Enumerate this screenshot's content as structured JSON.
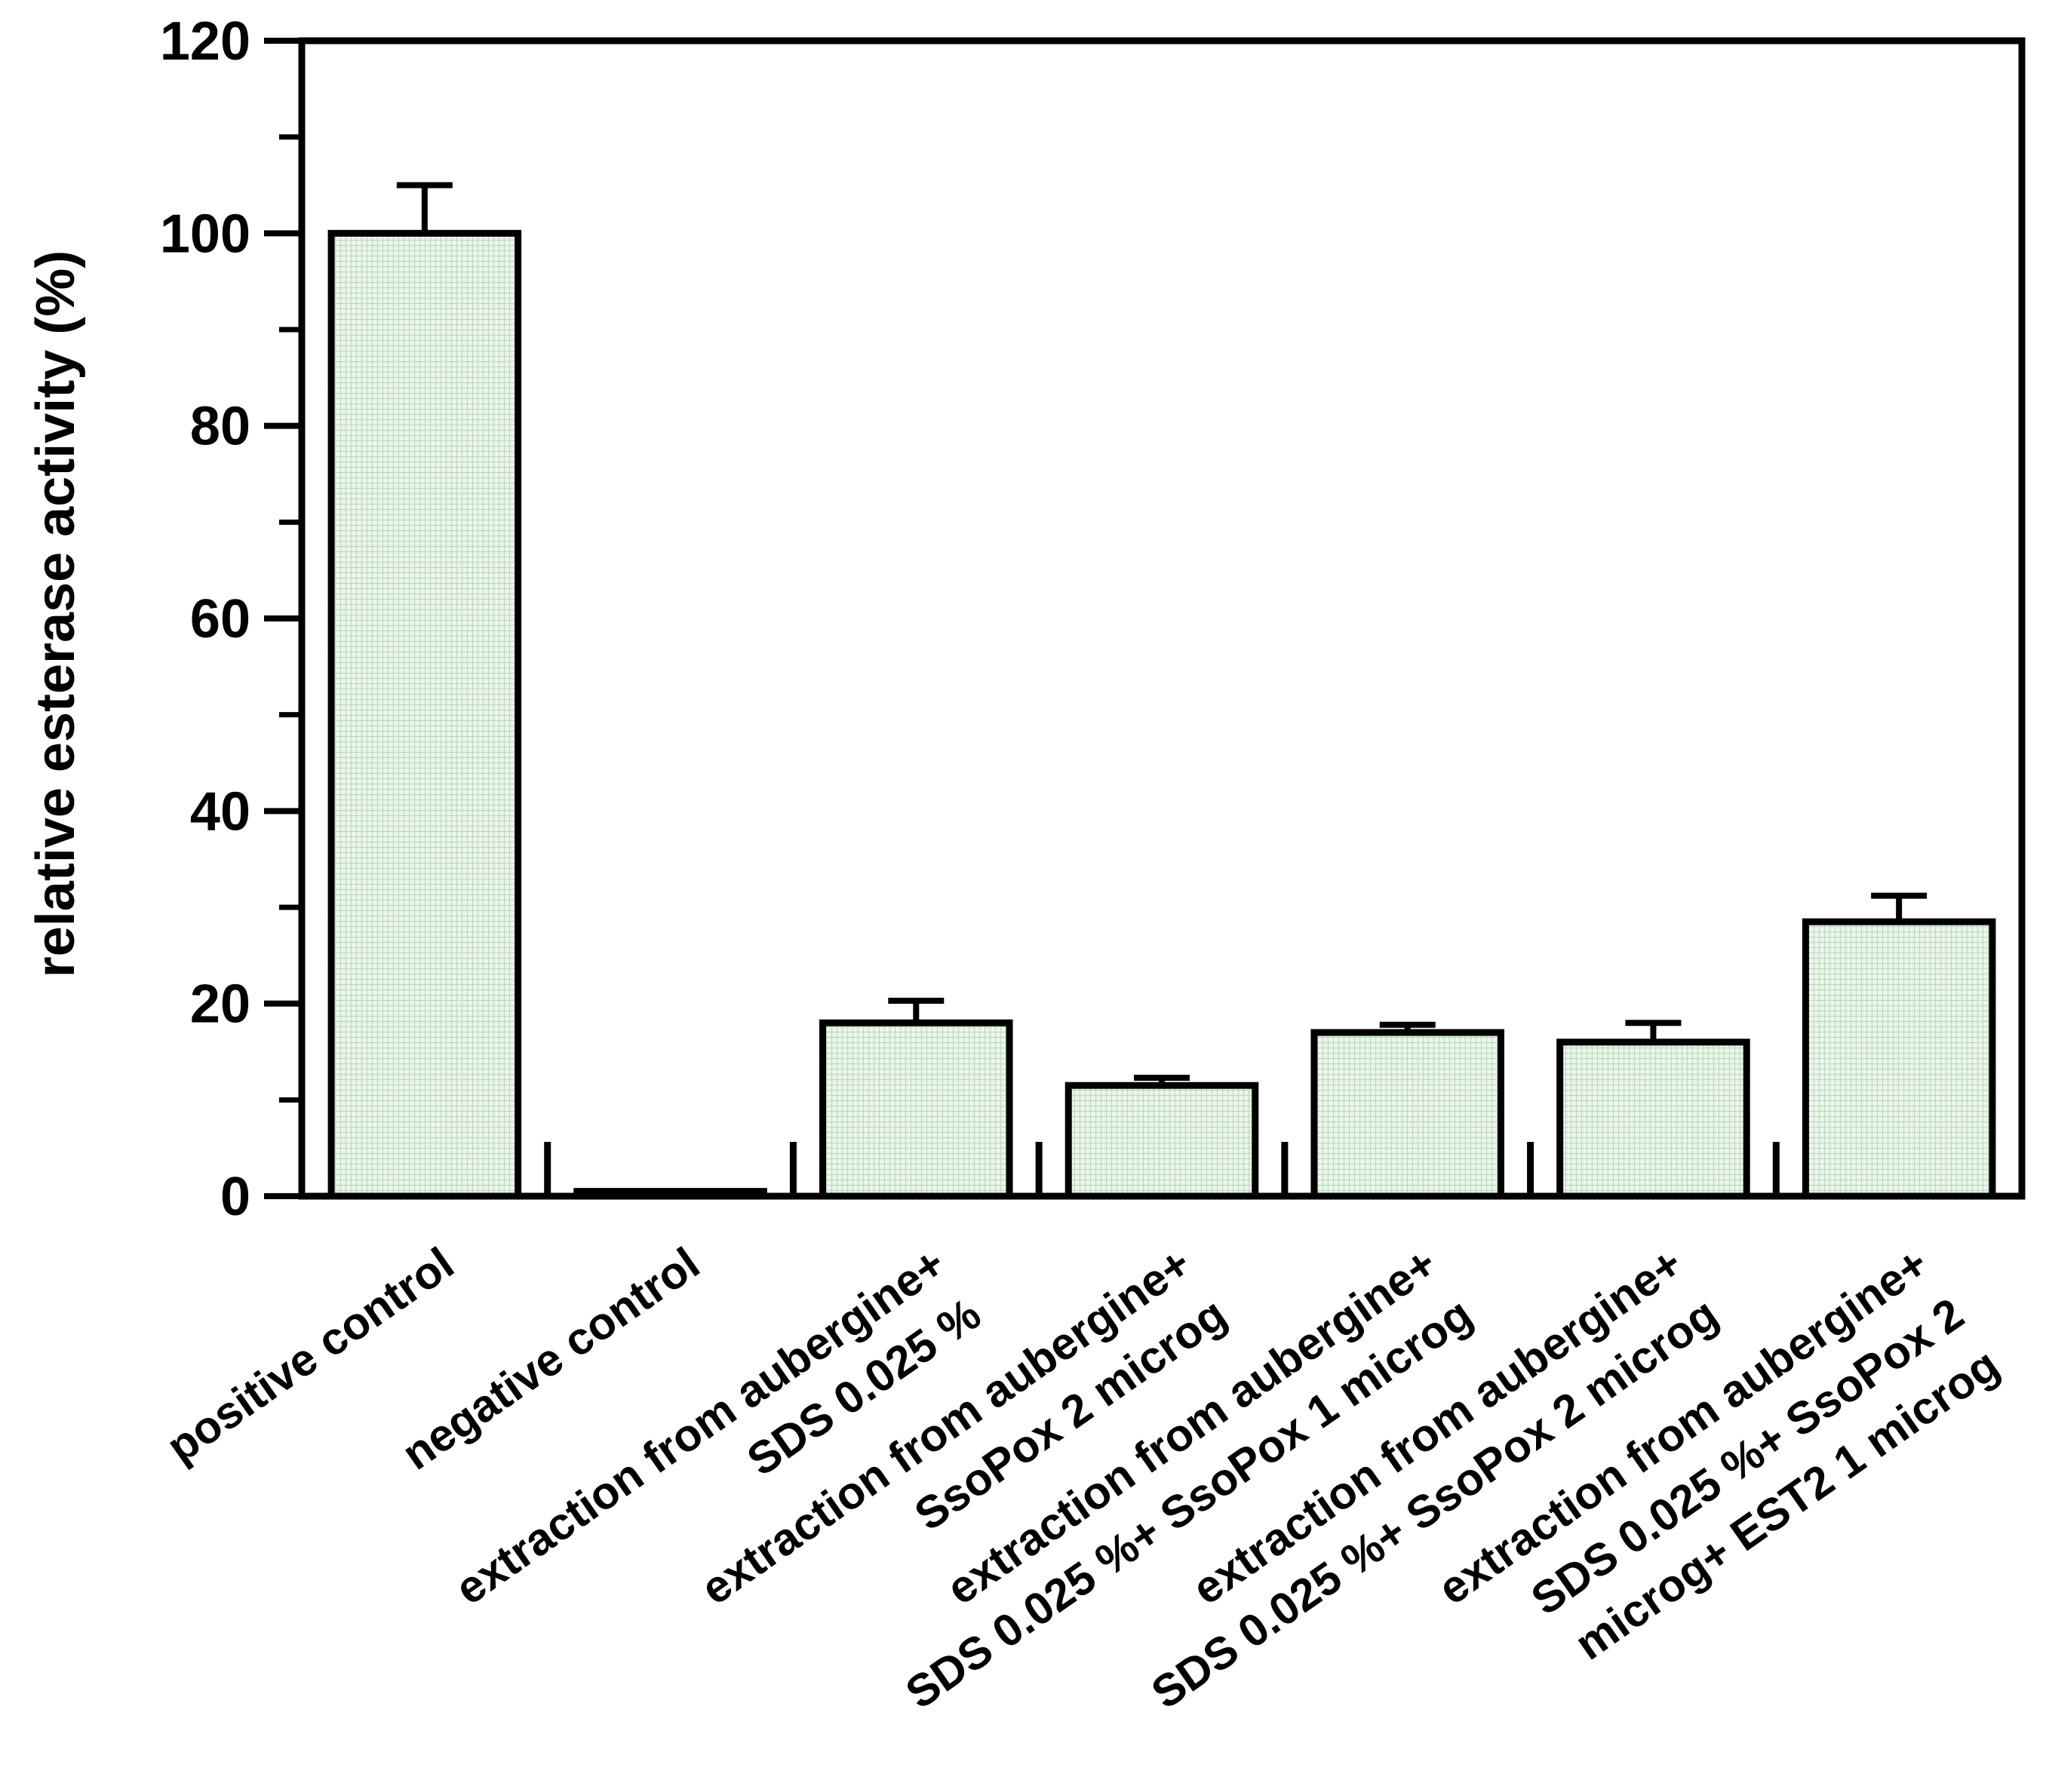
{
  "chart_data": {
    "type": "bar",
    "title": "",
    "xlabel": "",
    "ylabel": "relative esterase activity (%)",
    "ylim": [
      0,
      120
    ],
    "y_ticks": [
      "0",
      "20",
      "40",
      "60",
      "80",
      "100",
      "120"
    ],
    "y_minor_step": 10,
    "grid": false,
    "bar_color": "#e6f1e6",
    "bar_hatch_color": "#b7dcb7",
    "categories": [
      {
        "lines": [
          "positive control"
        ]
      },
      {
        "lines": [
          "negative control"
        ]
      },
      {
        "lines": [
          "extraction from aubergine+",
          "SDS 0.025 %"
        ]
      },
      {
        "lines": [
          "extraction from aubergine+",
          "SsoPox 2 microg"
        ]
      },
      {
        "lines": [
          "extraction from aubergine+",
          "SDS 0.025 %+ SsoPox 1 microg"
        ]
      },
      {
        "lines": [
          "extraction from aubergine+",
          "SDS 0.025 %+ SsoPox 2 microg"
        ]
      },
      {
        "lines": [
          "extraction from aubergine+",
          "SDS  0.025 %+ SsoPox 2",
          "microg+ EST2 1 microg"
        ]
      }
    ],
    "values": [
      100,
      0.5,
      18,
      11.5,
      17,
      16,
      28.5
    ],
    "errors": [
      5,
      0,
      2.3,
      0.8,
      0.8,
      2.0,
      2.7
    ]
  }
}
